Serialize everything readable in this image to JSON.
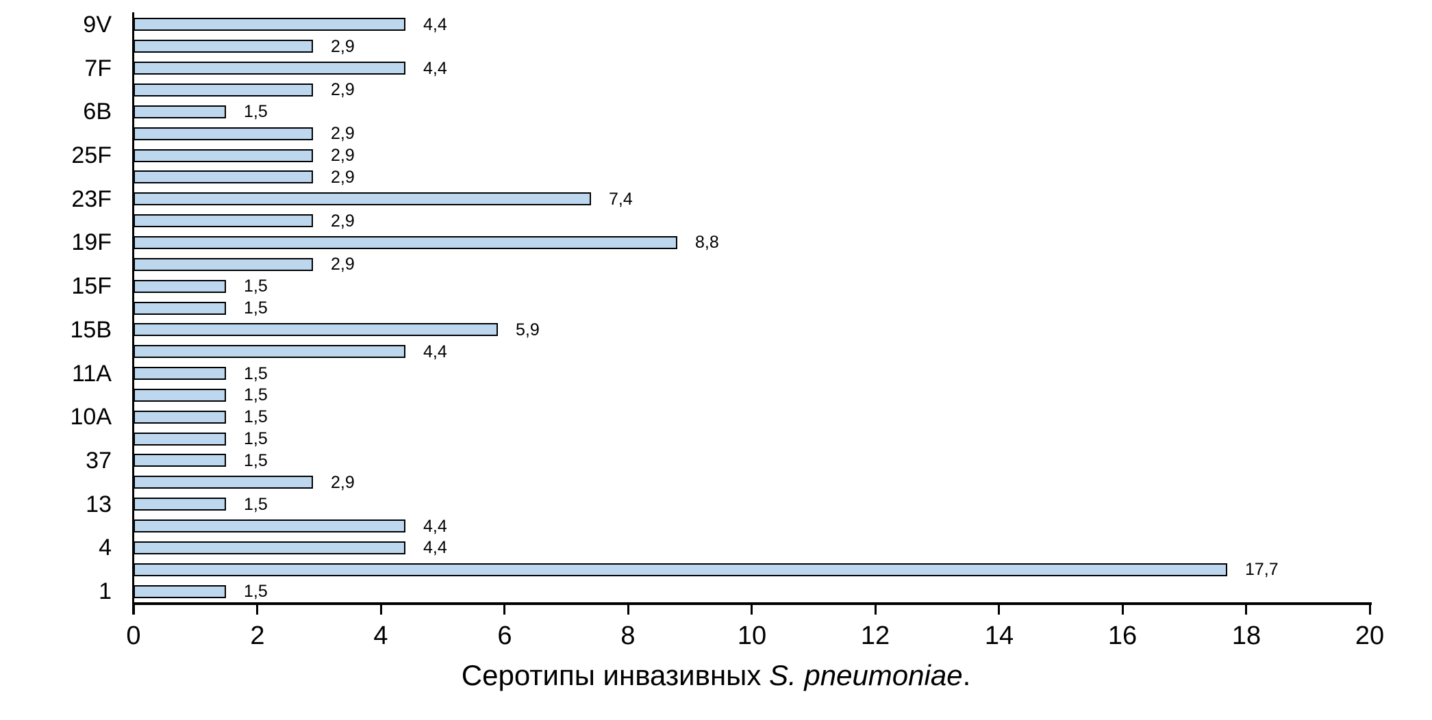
{
  "chart_data": {
    "type": "bar",
    "orientation": "horizontal",
    "title_regular": "Серотипы инвазивных ",
    "title_italic": "S. pneumoniae",
    "title_suffix": ".",
    "xlabel": "",
    "ylabel": "",
    "xlim": [
      0,
      20
    ],
    "x_ticks": [
      "0",
      "2",
      "4",
      "6",
      "8",
      "10",
      "12",
      "14",
      "16",
      "18",
      "20"
    ],
    "grid": false,
    "legend": false,
    "bar_fill": "#BDD7EE",
    "bar_border": "#000000",
    "background": "#FFFFFF",
    "bars": [
      {
        "category": "9V",
        "value": 4.4,
        "label": "4,4"
      },
      {
        "category": "",
        "value": 2.9,
        "label": "2,9"
      },
      {
        "category": "7F",
        "value": 4.4,
        "label": "4,4"
      },
      {
        "category": "",
        "value": 2.9,
        "label": "2,9"
      },
      {
        "category": "6B",
        "value": 1.5,
        "label": "1,5"
      },
      {
        "category": "",
        "value": 2.9,
        "label": "2,9"
      },
      {
        "category": "25F",
        "value": 2.9,
        "label": "2,9"
      },
      {
        "category": "",
        "value": 2.9,
        "label": "2,9"
      },
      {
        "category": "23F",
        "value": 7.4,
        "label": "7,4"
      },
      {
        "category": "",
        "value": 2.9,
        "label": "2,9"
      },
      {
        "category": "19F",
        "value": 8.8,
        "label": "8,8"
      },
      {
        "category": "",
        "value": 2.9,
        "label": "2,9"
      },
      {
        "category": "15F",
        "value": 1.5,
        "label": "1,5"
      },
      {
        "category": "",
        "value": 1.5,
        "label": "1,5"
      },
      {
        "category": "15B",
        "value": 5.9,
        "label": "5,9"
      },
      {
        "category": "",
        "value": 4.4,
        "label": "4,4"
      },
      {
        "category": "11A",
        "value": 1.5,
        "label": "1,5"
      },
      {
        "category": "",
        "value": 1.5,
        "label": "1,5"
      },
      {
        "category": "10A",
        "value": 1.5,
        "label": "1,5"
      },
      {
        "category": "",
        "value": 1.5,
        "label": "1,5"
      },
      {
        "category": "37",
        "value": 1.5,
        "label": "1,5"
      },
      {
        "category": "",
        "value": 2.9,
        "label": "2,9"
      },
      {
        "category": "13",
        "value": 1.5,
        "label": "1,5"
      },
      {
        "category": "",
        "value": 4.4,
        "label": "4,4"
      },
      {
        "category": "4",
        "value": 4.4,
        "label": "4,4"
      },
      {
        "category": "",
        "value": 17.7,
        "label": "17,7"
      },
      {
        "category": "1",
        "value": 1.5,
        "label": "1,5"
      }
    ]
  }
}
